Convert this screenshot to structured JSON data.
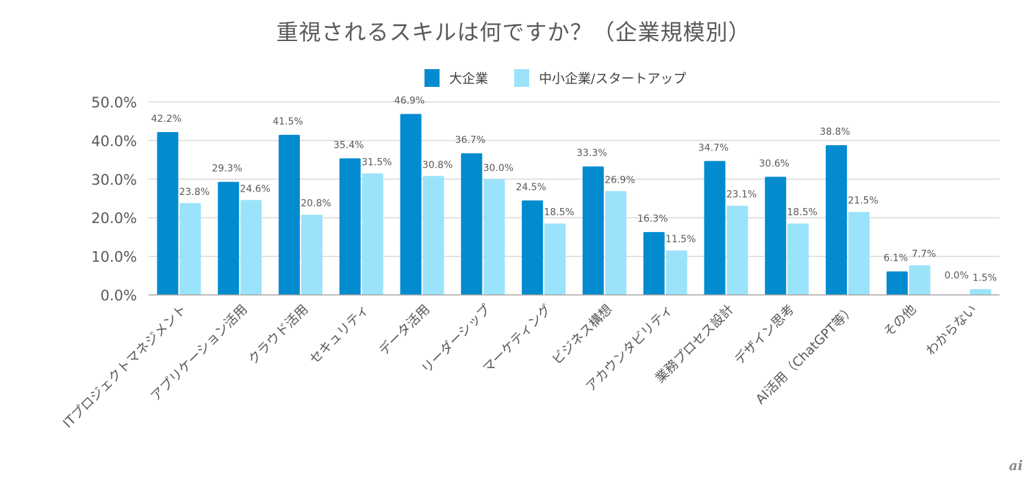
{
  "chart_data": {
    "type": "bar",
    "title": "重視されるスキルは何ですか？（企業規模別）",
    "xlabel": "",
    "ylabel": "",
    "ylim": [
      0,
      50
    ],
    "yticks": [
      0,
      10,
      20,
      30,
      40,
      50
    ],
    "ytick_labels": [
      "0.0%",
      "10.0%",
      "20.0%",
      "30.0%",
      "40.0%",
      "50.0%"
    ],
    "grid": true,
    "legend_position": "top",
    "categories": [
      "ITプロジェクトマネジメント",
      "アプリケーション活用",
      "クラウド活用",
      "セキュリティ",
      "データ活用",
      "リーダーシップ",
      "マーケティング",
      "ビジネス構想",
      "アカウンタビリティ",
      "業務プロセス設計",
      "デザイン思考",
      "AI活用（ChatGPT等）",
      "その他",
      "わからない"
    ],
    "series": [
      {
        "name": "大企業",
        "color": "#038BCF",
        "values": [
          42.2,
          29.3,
          41.5,
          35.4,
          46.9,
          36.7,
          24.5,
          33.3,
          16.3,
          34.7,
          30.6,
          38.8,
          6.1,
          0.0
        ],
        "labels": [
          "42.2%",
          "29.3%",
          "41.5%",
          "35.4%",
          "46.9%",
          "36.7%",
          "24.5%",
          "33.3%",
          "16.3%",
          "34.7%",
          "30.6%",
          "38.8%",
          "6.1%",
          "0.0%"
        ]
      },
      {
        "name": "中小企業/スタートアップ",
        "color": "#9BE3FA",
        "values": [
          23.8,
          24.6,
          20.8,
          31.5,
          30.8,
          30.0,
          18.5,
          26.9,
          11.5,
          23.1,
          18.5,
          21.5,
          7.7,
          1.5
        ],
        "labels": [
          "23.8%",
          "24.6%",
          "20.8%",
          "31.5%",
          "30.8%",
          "30.0%",
          "18.5%",
          "26.9%",
          "11.5%",
          "23.1%",
          "18.5%",
          "21.5%",
          "7.7%",
          "1.5%"
        ]
      }
    ]
  },
  "watermark": "ai"
}
